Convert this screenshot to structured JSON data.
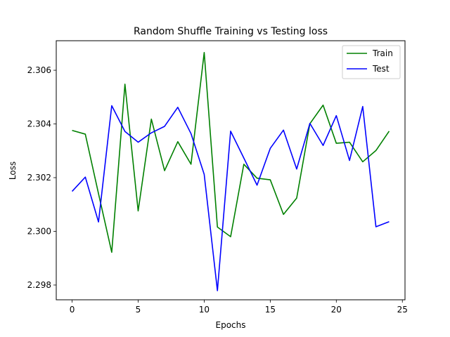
{
  "chart_data": {
    "type": "line",
    "title": "Random Shuffle Training vs Testing loss",
    "xlabel": "Epochs",
    "ylabel": "Loss",
    "xlim": [
      -1.2,
      25.2
    ],
    "ylim": [
      2.29745,
      2.3071
    ],
    "xticks": [
      0,
      5,
      10,
      15,
      20,
      25
    ],
    "xtick_labels": [
      "0",
      "5",
      "10",
      "15",
      "20",
      "25"
    ],
    "yticks": [
      2.298,
      2.3,
      2.302,
      2.304,
      2.306
    ],
    "ytick_labels": [
      "2.298",
      "2.300",
      "2.302",
      "2.304",
      "2.306"
    ],
    "grid": false,
    "legend_position": "top-right",
    "x": [
      0,
      1,
      2,
      3,
      4,
      5,
      6,
      7,
      8,
      9,
      10,
      11,
      12,
      13,
      14,
      15,
      16,
      17,
      18,
      19,
      20,
      21,
      22,
      23,
      24
    ],
    "series": [
      {
        "name": "Train",
        "color": "#008000",
        "values": [
          2.30376,
          2.30362,
          2.3014,
          2.29922,
          2.30548,
          2.30076,
          2.30418,
          2.30226,
          2.30334,
          2.3025,
          2.30666,
          2.30016,
          2.2998,
          2.3025,
          2.30198,
          2.30192,
          2.30063,
          2.30124,
          2.30401,
          2.3047,
          2.30328,
          2.30332,
          2.30259,
          2.30301,
          2.30373
        ]
      },
      {
        "name": "Test",
        "color": "#0000ff",
        "values": [
          2.30149,
          2.30202,
          2.30035,
          2.30468,
          2.30372,
          2.30332,
          2.30367,
          2.30391,
          2.30462,
          2.30364,
          2.30212,
          2.29779,
          2.30373,
          2.30273,
          2.30172,
          2.30309,
          2.30377,
          2.30232,
          2.30402,
          2.3032,
          2.30431,
          2.30264,
          2.30465,
          2.30017,
          2.30036
        ]
      }
    ]
  }
}
